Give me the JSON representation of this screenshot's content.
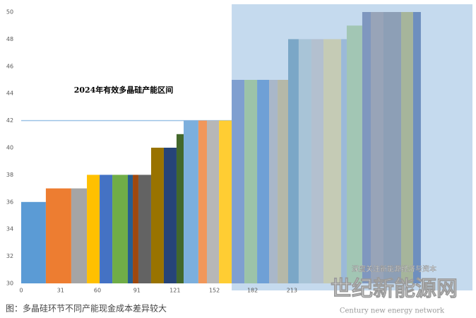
{
  "chart_data": {
    "type": "histogram",
    "title": "2024年有效多晶硅产能区间",
    "bins": [
      0,
      19.4,
      39.4,
      51.7,
      61.7,
      71.7,
      83.9,
      87.8,
      92.2,
      102.2,
      112.2,
      122.2,
      127.8,
      139.4,
      146.1,
      155.6,
      165.6,
      175.6,
      185.6,
      195,
      201.7,
      210,
      218.3,
      228.3,
      237.8,
      251.7,
      256.1,
      268.3,
      275,
      285,
      298.9,
      308.3,
      314.4
    ],
    "values": [
      36,
      37,
      37,
      38,
      38,
      38,
      38,
      38,
      38,
      40,
      40,
      41,
      42,
      42,
      42,
      42,
      45,
      45,
      45,
      45,
      45,
      48,
      48,
      48,
      48,
      48,
      49,
      50,
      50,
      50,
      50,
      50
    ],
    "colors": [
      "#5b9bd5",
      "#ed7d31",
      "#a5a5a5",
      "#ffc000",
      "#4472c4",
      "#70ad47",
      "#255e91",
      "#9e480e",
      "#636363",
      "#997300",
      "#264478",
      "#43682b",
      "#7cafdd",
      "#f1975a",
      "#b7b7b7",
      "#ffcd33",
      "#7f9fd0",
      "#9cc3a8",
      "#6fa0d6",
      "#a9b7c9",
      "#b5b8a8",
      "#7ba7c7",
      "#a8c4d7",
      "#b3c0cf",
      "#c5cbb5",
      "#9bb9d8",
      "#a2c6b4",
      "#7f97bf",
      "#98a4b8",
      "#8d9fb6",
      "#a6b59b",
      "#6e8fbe"
    ],
    "xlim": [
      0,
      355
    ],
    "ylim": [
      30,
      50
    ],
    "xticks": [
      0,
      31,
      60,
      91,
      121,
      152,
      182,
      213
    ],
    "yticks": [
      30,
      32,
      34,
      36,
      38,
      40,
      42,
      44,
      46,
      48,
      50
    ],
    "reference_line": 42,
    "highlight_xlim": [
      165.6,
      355
    ],
    "highlight_color": "#c5daee"
  },
  "caption": "图：多晶硅环节不同产能现金成本差异较大",
  "watermark": {
    "slogan": "深度关注新能源经济与资本",
    "brand": "世纪新能源网",
    "brand_en": "Century new energy network"
  }
}
